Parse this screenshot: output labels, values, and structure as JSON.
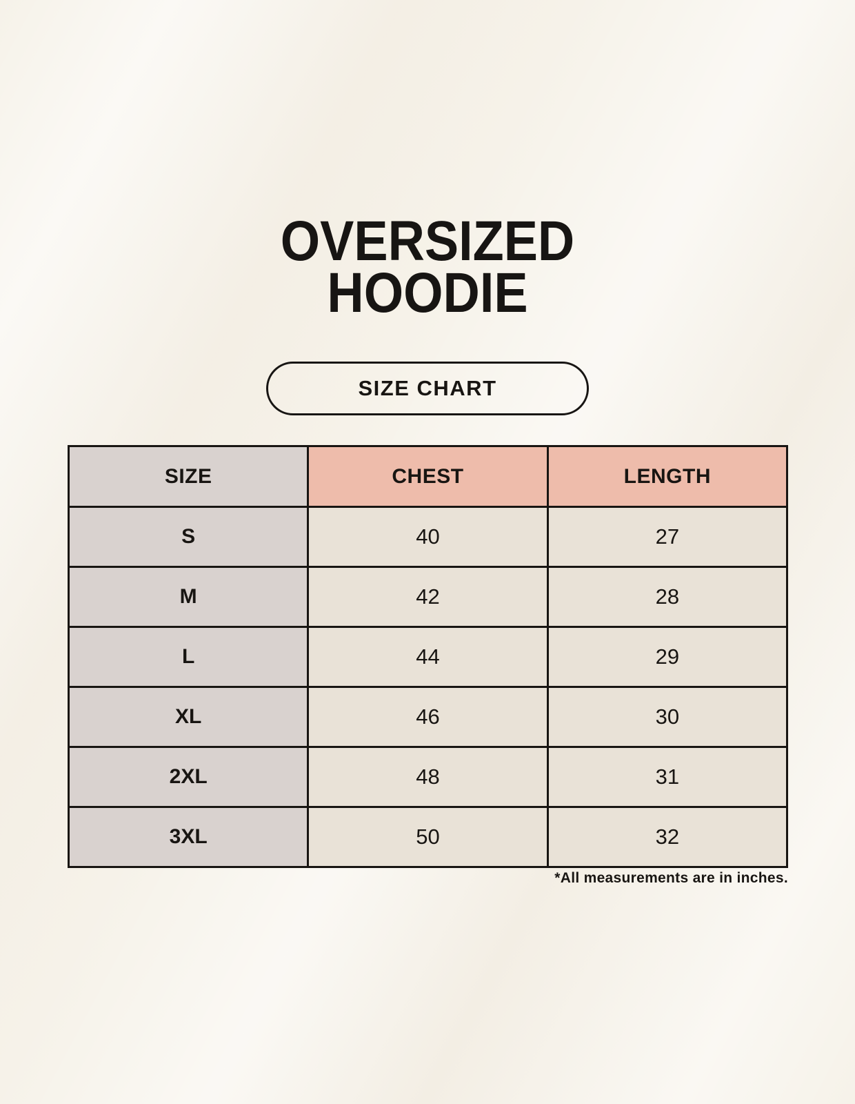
{
  "page": {
    "title": [
      "OVERSIZED",
      "HOODIE"
    ],
    "badge_label": "SIZE CHART",
    "footnote": "*All measurements are in inches."
  },
  "table": {
    "columns": [
      "SIZE",
      "CHEST",
      "LENGTH"
    ],
    "rows": [
      [
        "S",
        "40",
        "27"
      ],
      [
        "M",
        "42",
        "28"
      ],
      [
        "L",
        "44",
        "29"
      ],
      [
        "XL",
        "46",
        "30"
      ],
      [
        "2XL",
        "48",
        "31"
      ],
      [
        "3XL",
        "50",
        "32"
      ]
    ]
  },
  "colors": {
    "page_background": "#f7f3ea",
    "size_column_background": "#d9d2cf",
    "header_accent_background": "#eebcab",
    "data_cell_background": "#e9e2d7",
    "border": "#181512",
    "text": "#171513"
  }
}
